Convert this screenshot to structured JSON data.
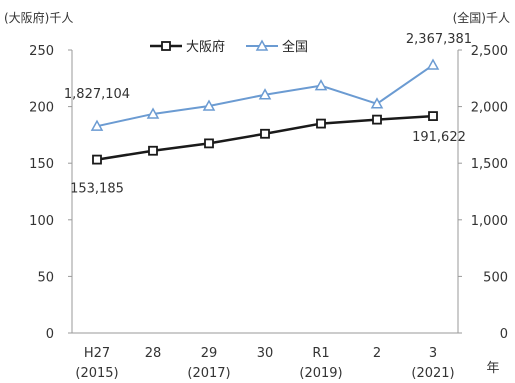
{
  "chart_data": {
    "type": "line",
    "left_unit_label": "(大阪府)千人",
    "right_unit_label": "(全国)千人",
    "x_axis_suffix": "年",
    "categories": [
      {
        "era": "H27",
        "year": "(2015)"
      },
      {
        "era": "28",
        "year": ""
      },
      {
        "era": "29",
        "year": "(2017)"
      },
      {
        "era": "30",
        "year": ""
      },
      {
        "era": "R1",
        "year": "(2019)"
      },
      {
        "era": "2",
        "year": ""
      },
      {
        "era": "3",
        "year": "(2021)"
      }
    ],
    "y_left": {
      "min": 0,
      "max": 250,
      "ticks": [
        "0",
        "50",
        "100",
        "150",
        "200",
        "250"
      ],
      "tick_values": [
        0,
        50,
        100,
        150,
        200,
        250
      ]
    },
    "y_right": {
      "min": 0,
      "max": 2500,
      "ticks": [
        "0",
        "500",
        "1,000",
        "1,500",
        "2,000",
        "2,500"
      ],
      "tick_values": [
        0,
        500,
        1000,
        1500,
        2000,
        2500
      ]
    },
    "series": [
      {
        "name": "大阪府",
        "axis": "left",
        "color": "#1a1a1a",
        "marker": "square",
        "values": [
          153.185,
          161,
          167.5,
          176,
          185,
          188.5,
          191.622
        ],
        "labels": [
          {
            "index": 0,
            "text": "153,185",
            "position": "below"
          },
          {
            "index": 6,
            "text": "191,622",
            "position": "below"
          }
        ]
      },
      {
        "name": "全国",
        "axis": "right",
        "color": "#6b9bd2",
        "marker": "triangle",
        "values": [
          1827.104,
          1935,
          2005,
          2105,
          2185,
          2025,
          2367.381
        ],
        "labels": [
          {
            "index": 0,
            "text": "1,827,104",
            "position": "above"
          },
          {
            "index": 6,
            "text": "2,367,381",
            "position": "above"
          }
        ]
      }
    ],
    "legend": {
      "position": "top-center"
    },
    "grid": false
  }
}
